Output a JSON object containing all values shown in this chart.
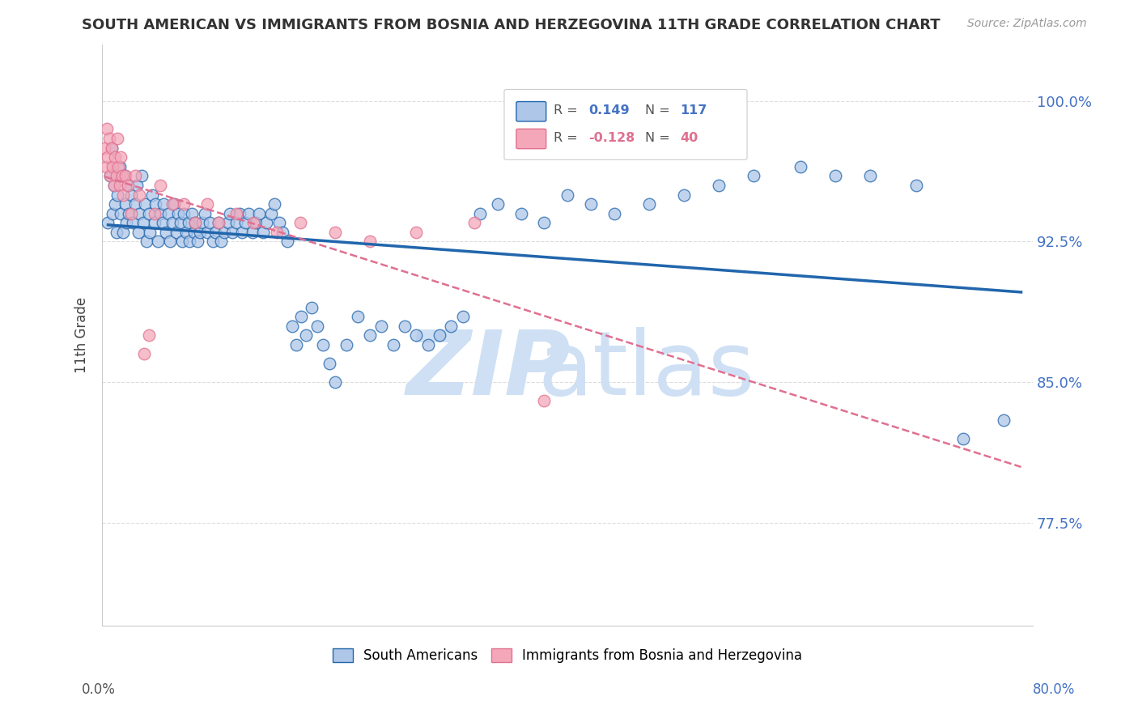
{
  "title": "SOUTH AMERICAN VS IMMIGRANTS FROM BOSNIA AND HERZEGOVINA 11TH GRADE CORRELATION CHART",
  "source": "Source: ZipAtlas.com",
  "ylabel": "11th Grade",
  "yticks": [
    0.775,
    0.85,
    0.925,
    1.0
  ],
  "ytick_labels": [
    "77.5%",
    "85.0%",
    "92.5%",
    "100.0%"
  ],
  "xlim": [
    0.0,
    0.8
  ],
  "ylim": [
    0.72,
    1.03
  ],
  "blue_R": 0.149,
  "blue_N": 117,
  "pink_R": -0.128,
  "pink_N": 40,
  "blue_color": "#aec6e8",
  "pink_color": "#f4a7b9",
  "blue_edge_color": "#2166ac",
  "pink_edge_color": "#e07090",
  "blue_line_color": "#2166ac",
  "pink_line_color": "#e07090",
  "legend_blue_label": "South Americans",
  "legend_pink_label": "Immigrants from Bosnia and Herzegovina",
  "blue_x": [
    0.005,
    0.007,
    0.008,
    0.009,
    0.01,
    0.011,
    0.012,
    0.013,
    0.015,
    0.016,
    0.018,
    0.019,
    0.02,
    0.021,
    0.022,
    0.023,
    0.025,
    0.026,
    0.028,
    0.03,
    0.031,
    0.032,
    0.034,
    0.035,
    0.037,
    0.038,
    0.04,
    0.041,
    0.043,
    0.045,
    0.046,
    0.048,
    0.05,
    0.052,
    0.053,
    0.055,
    0.057,
    0.058,
    0.06,
    0.062,
    0.064,
    0.065,
    0.067,
    0.069,
    0.07,
    0.072,
    0.074,
    0.075,
    0.077,
    0.079,
    0.08,
    0.082,
    0.084,
    0.086,
    0.088,
    0.09,
    0.092,
    0.095,
    0.097,
    0.1,
    0.102,
    0.105,
    0.108,
    0.11,
    0.112,
    0.115,
    0.118,
    0.12,
    0.123,
    0.126,
    0.129,
    0.132,
    0.135,
    0.138,
    0.141,
    0.145,
    0.148,
    0.152,
    0.155,
    0.159,
    0.163,
    0.167,
    0.171,
    0.175,
    0.18,
    0.185,
    0.19,
    0.195,
    0.2,
    0.21,
    0.22,
    0.23,
    0.24,
    0.25,
    0.26,
    0.27,
    0.28,
    0.29,
    0.3,
    0.31,
    0.325,
    0.34,
    0.36,
    0.38,
    0.4,
    0.42,
    0.44,
    0.47,
    0.5,
    0.53,
    0.56,
    0.6,
    0.63,
    0.66,
    0.7,
    0.74,
    0.775
  ],
  "blue_y": [
    0.935,
    0.96,
    0.975,
    0.94,
    0.955,
    0.945,
    0.93,
    0.95,
    0.965,
    0.94,
    0.93,
    0.96,
    0.945,
    0.935,
    0.955,
    0.94,
    0.95,
    0.935,
    0.945,
    0.955,
    0.93,
    0.94,
    0.96,
    0.935,
    0.945,
    0.925,
    0.94,
    0.93,
    0.95,
    0.935,
    0.945,
    0.925,
    0.94,
    0.935,
    0.945,
    0.93,
    0.94,
    0.925,
    0.935,
    0.945,
    0.93,
    0.94,
    0.935,
    0.925,
    0.94,
    0.93,
    0.935,
    0.925,
    0.94,
    0.93,
    0.935,
    0.925,
    0.93,
    0.935,
    0.94,
    0.93,
    0.935,
    0.925,
    0.93,
    0.935,
    0.925,
    0.93,
    0.935,
    0.94,
    0.93,
    0.935,
    0.94,
    0.93,
    0.935,
    0.94,
    0.93,
    0.935,
    0.94,
    0.93,
    0.935,
    0.94,
    0.945,
    0.935,
    0.93,
    0.925,
    0.88,
    0.87,
    0.885,
    0.875,
    0.89,
    0.88,
    0.87,
    0.86,
    0.85,
    0.87,
    0.885,
    0.875,
    0.88,
    0.87,
    0.88,
    0.875,
    0.87,
    0.875,
    0.88,
    0.885,
    0.94,
    0.945,
    0.94,
    0.935,
    0.95,
    0.945,
    0.94,
    0.945,
    0.95,
    0.955,
    0.96,
    0.965,
    0.96,
    0.96,
    0.955,
    0.82,
    0.83
  ],
  "pink_x": [
    0.002,
    0.003,
    0.004,
    0.005,
    0.006,
    0.007,
    0.008,
    0.009,
    0.01,
    0.011,
    0.012,
    0.013,
    0.014,
    0.015,
    0.016,
    0.017,
    0.018,
    0.02,
    0.022,
    0.025,
    0.028,
    0.032,
    0.036,
    0.04,
    0.045,
    0.05,
    0.06,
    0.07,
    0.08,
    0.09,
    0.1,
    0.115,
    0.13,
    0.15,
    0.17,
    0.2,
    0.23,
    0.27,
    0.32,
    0.38
  ],
  "pink_y": [
    0.975,
    0.965,
    0.985,
    0.97,
    0.98,
    0.96,
    0.975,
    0.965,
    0.955,
    0.97,
    0.96,
    0.98,
    0.965,
    0.955,
    0.97,
    0.96,
    0.95,
    0.96,
    0.955,
    0.94,
    0.96,
    0.95,
    0.865,
    0.875,
    0.94,
    0.955,
    0.945,
    0.945,
    0.935,
    0.945,
    0.935,
    0.94,
    0.935,
    0.93,
    0.935,
    0.93,
    0.925,
    0.93,
    0.935,
    0.84
  ]
}
